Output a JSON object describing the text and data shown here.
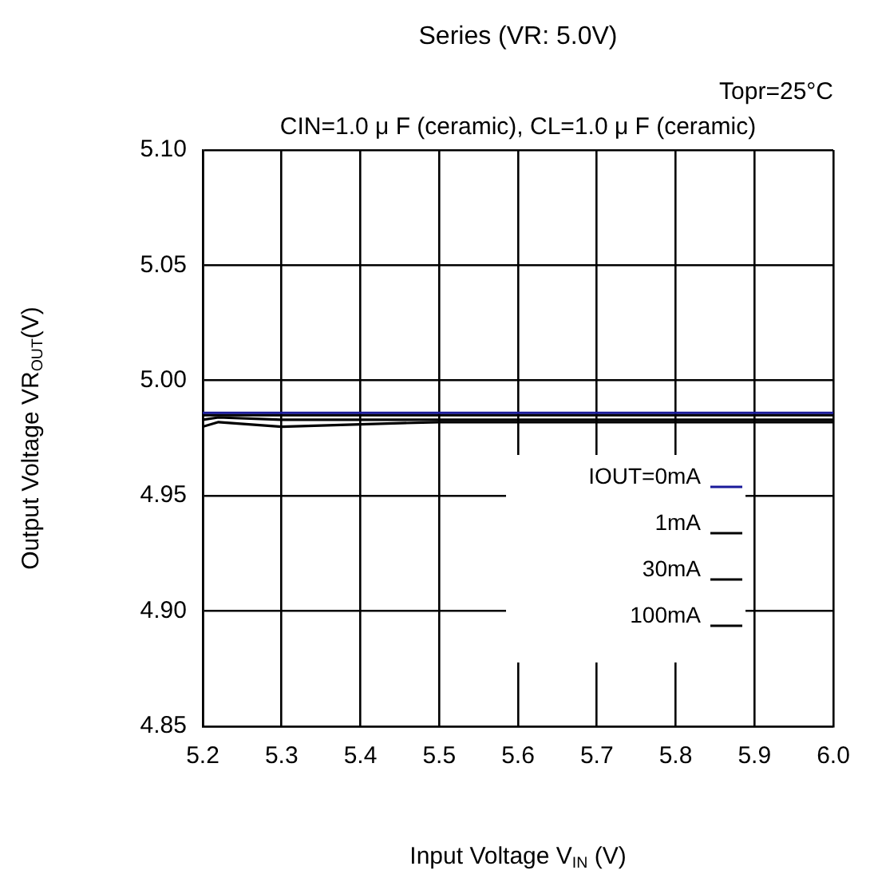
{
  "chart_data": {
    "type": "line",
    "title": "Series (VR: 5.0V)",
    "subtitle": "Topr=25°C",
    "annotations": [
      "CIN=1.0 μ F (ceramic), CL=1.0 μ F (ceramic)"
    ],
    "xlabel": "Input Voltage V$_{IN}$ (V)",
    "ylabel": "Output Voltage VR$_{OUT}$(V)",
    "x": [
      5.2,
      5.22,
      5.3,
      5.4,
      5.5,
      5.6,
      5.7,
      5.8,
      5.9,
      6.0
    ],
    "series": [
      {
        "name": "IOUT=0mA",
        "color": "#1a1a9a",
        "values": [
          4.986,
          4.986,
          4.986,
          4.986,
          4.986,
          4.986,
          4.986,
          4.986,
          4.986,
          4.986
        ]
      },
      {
        "name": "1mA",
        "color": "#000000",
        "values": [
          4.985,
          4.985,
          4.985,
          4.985,
          4.985,
          4.985,
          4.985,
          4.985,
          4.985,
          4.985
        ]
      },
      {
        "name": "30mA",
        "color": "#000000",
        "values": [
          4.983,
          4.984,
          4.983,
          4.983,
          4.983,
          4.983,
          4.983,
          4.983,
          4.983,
          4.983
        ]
      },
      {
        "name": "100mA",
        "color": "#000000",
        "values": [
          4.98,
          4.982,
          4.98,
          4.981,
          4.982,
          4.982,
          4.982,
          4.982,
          4.982,
          4.982
        ]
      }
    ],
    "xlim": [
      5.2,
      6.0
    ],
    "xticks": [
      5.2,
      5.3,
      5.4,
      5.5,
      5.6,
      5.7,
      5.8,
      5.9,
      {
        "value": 6,
        "label": "6.0"
      }
    ],
    "ylim": [
      4.85,
      5.1
    ],
    "yticks": [
      4.85,
      {
        "value": 4.9,
        "label": "4.90"
      },
      4.95,
      {
        "value": 5,
        "label": "5.00"
      },
      5.05,
      {
        "value": 5.1,
        "label": "5.10"
      }
    ],
    "grid": true,
    "legend": "bottom right",
    "marker": "none",
    "line_style": "solid"
  }
}
